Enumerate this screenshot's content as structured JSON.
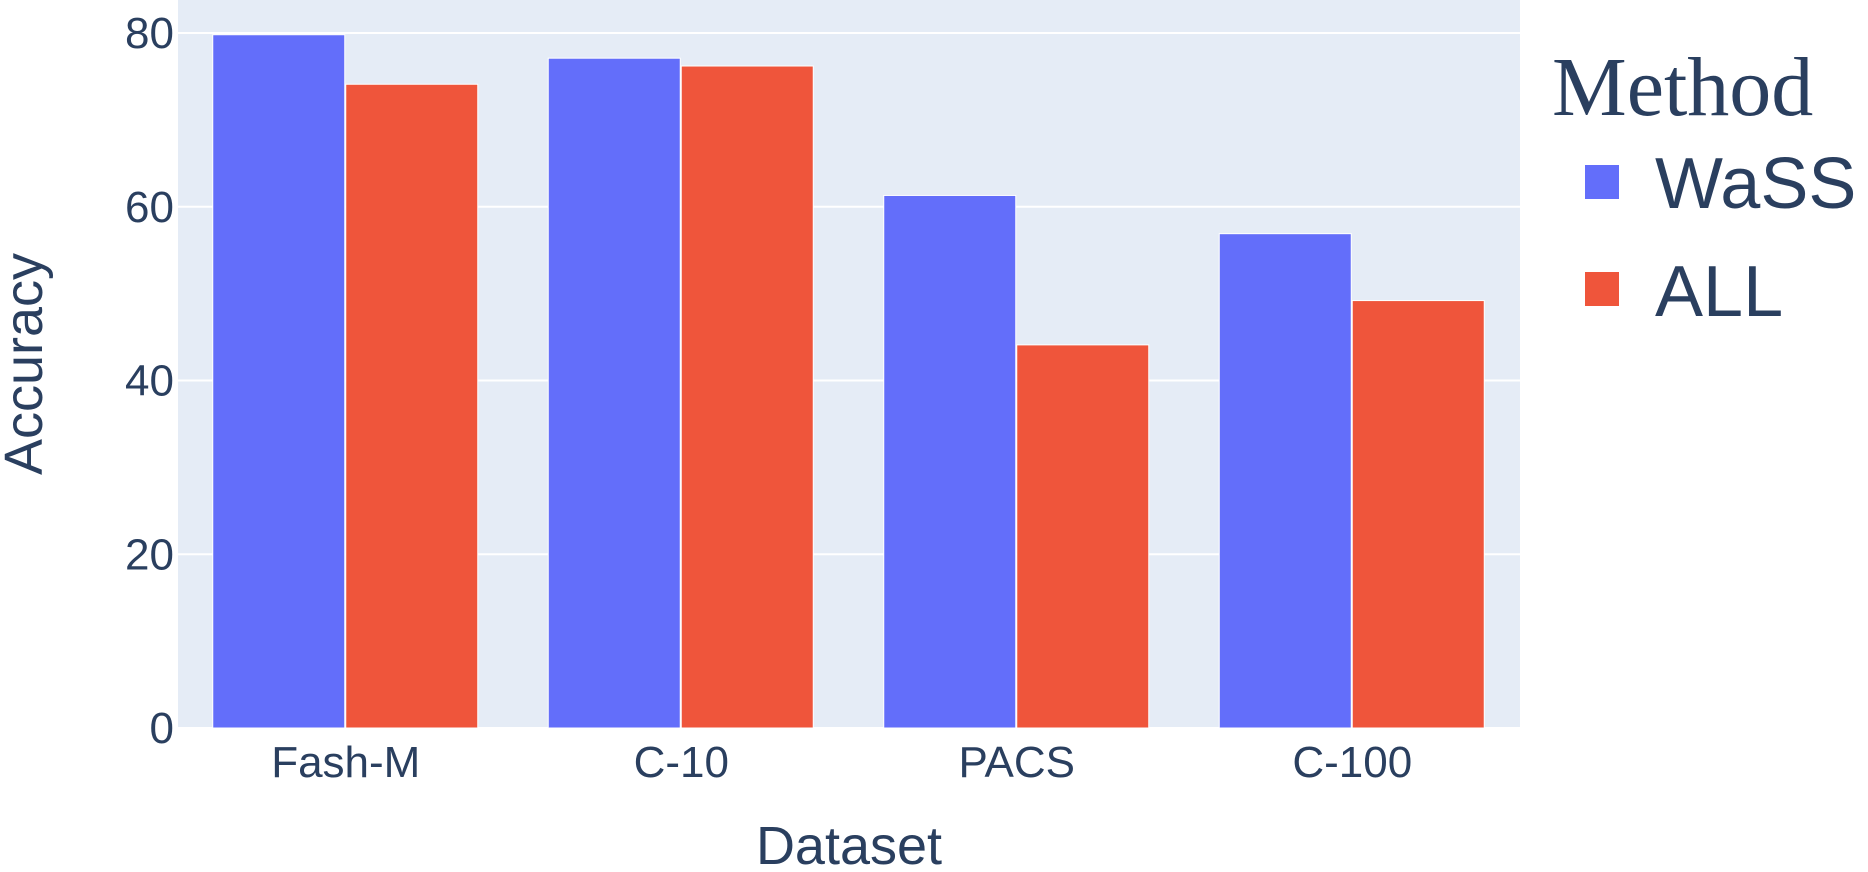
{
  "chart_data": {
    "type": "bar",
    "title": "",
    "xlabel": "Dataset",
    "ylabel": "Accuracy",
    "categories": [
      "Fash-M",
      "C-10",
      "PACS",
      "C-100"
    ],
    "series": [
      {
        "name": "WaSS",
        "color": "#636efa",
        "values": [
          79.8,
          77.1,
          61.3,
          56.9
        ]
      },
      {
        "name": "ALL",
        "color": "#ef553b",
        "values": [
          74.1,
          76.2,
          44.1,
          49.2
        ]
      }
    ],
    "ylim": [
      0,
      80
    ],
    "yticks": [
      "0",
      "20",
      "40",
      "60",
      "80"
    ],
    "grid": true,
    "legend": {
      "title": "Method",
      "placement": "top-right"
    },
    "plot_background": "#e5ecf6"
  }
}
